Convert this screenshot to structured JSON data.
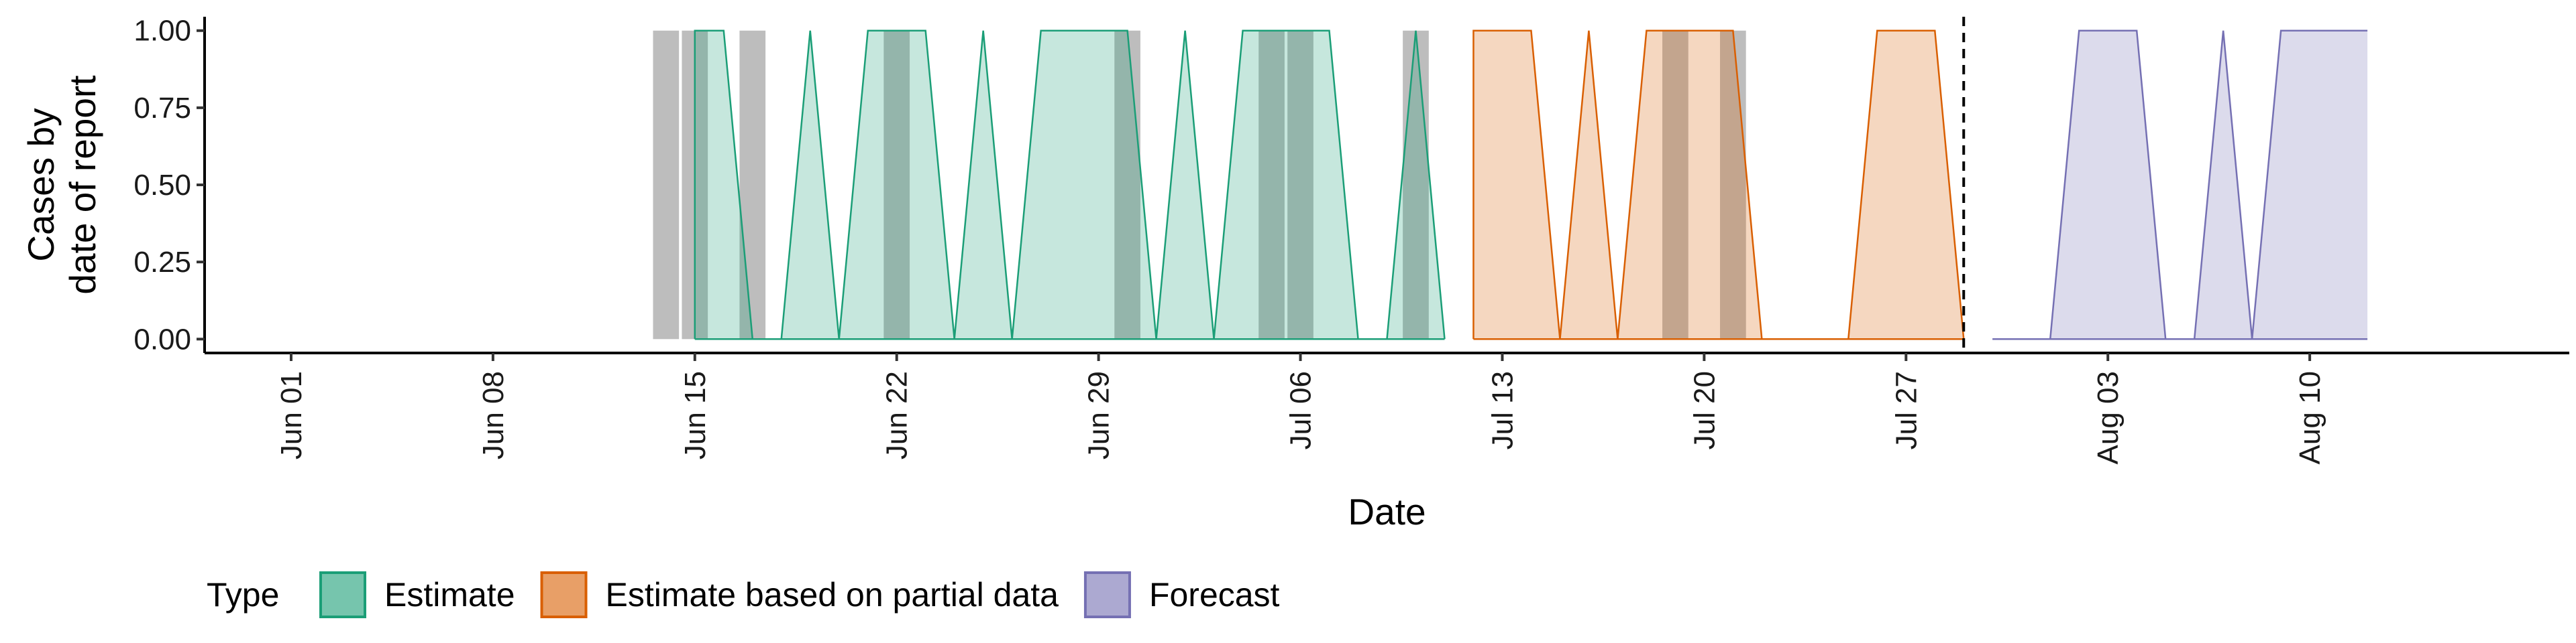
{
  "chart_data": {
    "type": "area",
    "title": "",
    "xlabel": "Date",
    "ylabel_lines": [
      "Cases by",
      "date of report"
    ],
    "x_ticks": [
      {
        "date": "2020-06-01",
        "label": "Jun 01"
      },
      {
        "date": "2020-06-08",
        "label": "Jun 08"
      },
      {
        "date": "2020-06-15",
        "label": "Jun 15"
      },
      {
        "date": "2020-06-22",
        "label": "Jun 22"
      },
      {
        "date": "2020-06-29",
        "label": "Jun 29"
      },
      {
        "date": "2020-07-06",
        "label": "Jul 06"
      },
      {
        "date": "2020-07-13",
        "label": "Jul 13"
      },
      {
        "date": "2020-07-20",
        "label": "Jul 20"
      },
      {
        "date": "2020-07-27",
        "label": "Jul 27"
      },
      {
        "date": "2020-08-03",
        "label": "Aug 03"
      },
      {
        "date": "2020-08-10",
        "label": "Aug 10"
      }
    ],
    "y_ticks": [
      "0.00",
      "0.25",
      "0.50",
      "0.75",
      "1.00"
    ],
    "xlim": [
      "2020-05-29",
      "2020-08-19"
    ],
    "ylim": [
      -0.045,
      1.045
    ],
    "grid": false,
    "legend_title": "Type",
    "legend_position": "bottom-left",
    "forecast_date": "2020-07-29",
    "observed_cases": [
      {
        "date": "2020-06-14",
        "value": 1
      },
      {
        "date": "2020-06-15",
        "value": 1
      },
      {
        "date": "2020-06-17",
        "value": 1
      },
      {
        "date": "2020-06-22",
        "value": 1
      },
      {
        "date": "2020-06-30",
        "value": 1
      },
      {
        "date": "2020-07-05",
        "value": 1
      },
      {
        "date": "2020-07-06",
        "value": 1
      },
      {
        "date": "2020-07-10",
        "value": 1
      },
      {
        "date": "2020-07-19",
        "value": 1
      },
      {
        "date": "2020-07-21",
        "value": 1
      }
    ],
    "series": [
      {
        "name": "Estimate",
        "fill": "#1b9e77",
        "stroke": "#1b9e77",
        "x": [
          "2020-06-15",
          "2020-06-15",
          "2020-06-16",
          "2020-06-17",
          "2020-06-18",
          "2020-06-19",
          "2020-06-20",
          "2020-06-21",
          "2020-06-22",
          "2020-06-23",
          "2020-06-24",
          "2020-06-25",
          "2020-06-26",
          "2020-06-27",
          "2020-06-28",
          "2020-06-29",
          "2020-06-30",
          "2020-07-01",
          "2020-07-02",
          "2020-07-03",
          "2020-07-04",
          "2020-07-05",
          "2020-07-06",
          "2020-07-07",
          "2020-07-08",
          "2020-07-09",
          "2020-07-10",
          "2020-07-11"
        ],
        "lower": [
          0,
          0,
          0,
          0,
          0,
          0,
          0,
          0,
          0,
          0,
          0,
          0,
          0,
          0,
          0,
          0,
          0,
          0,
          0,
          0,
          0,
          0,
          0,
          0,
          0,
          0,
          0,
          0
        ],
        "upper": [
          0,
          1,
          1,
          0,
          0,
          1,
          0,
          1,
          1,
          1,
          0,
          1,
          0,
          1,
          1,
          1,
          1,
          0,
          1,
          0,
          1,
          1,
          1,
          1,
          0,
          0,
          1,
          0
        ]
      },
      {
        "name": "Estimate based on partial data",
        "fill": "#d95f02",
        "stroke": "#d95f02",
        "x": [
          "2020-07-12",
          "2020-07-12",
          "2020-07-13",
          "2020-07-14",
          "2020-07-15",
          "2020-07-16",
          "2020-07-17",
          "2020-07-18",
          "2020-07-19",
          "2020-07-20",
          "2020-07-21",
          "2020-07-22",
          "2020-07-23",
          "2020-07-24",
          "2020-07-25",
          "2020-07-26",
          "2020-07-27",
          "2020-07-28",
          "2020-07-29"
        ],
        "lower": [
          0,
          0,
          0,
          0,
          0,
          0,
          0,
          0,
          0,
          0,
          0,
          0,
          0,
          0,
          0,
          0,
          0,
          0,
          0
        ],
        "upper": [
          0,
          1,
          1,
          1,
          0,
          1,
          0,
          1,
          1,
          1,
          1,
          0,
          0,
          0,
          0,
          1,
          1,
          1,
          0
        ]
      },
      {
        "name": "Forecast",
        "fill": "#7570b3",
        "stroke": "#7570b3",
        "x": [
          "2020-07-30",
          "2020-07-31",
          "2020-08-01",
          "2020-08-02",
          "2020-08-03",
          "2020-08-04",
          "2020-08-05",
          "2020-08-06",
          "2020-08-07",
          "2020-08-08",
          "2020-08-09",
          "2020-08-10",
          "2020-08-11",
          "2020-08-12"
        ],
        "lower": [
          0,
          0,
          0,
          0,
          0,
          0,
          0,
          0,
          0,
          0,
          0,
          0,
          0,
          0
        ],
        "upper": [
          0,
          0,
          0,
          1,
          1,
          1,
          0,
          0,
          1,
          0,
          1,
          1,
          1,
          1
        ]
      }
    ]
  }
}
